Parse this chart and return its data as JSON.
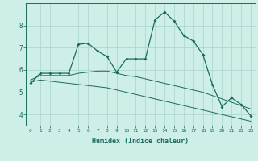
{
  "xlabel": "Humidex (Indice chaleur)",
  "bg_color": "#ceeee8",
  "grid_color": "#b0d8d0",
  "line_color": "#1a6b5e",
  "xlim": [
    -0.5,
    23.5
  ],
  "ylim": [
    3.5,
    9.0
  ],
  "yticks": [
    4,
    5,
    6,
    7,
    8
  ],
  "xticks": [
    0,
    1,
    2,
    3,
    4,
    5,
    6,
    7,
    8,
    9,
    10,
    11,
    12,
    13,
    14,
    15,
    16,
    17,
    18,
    19,
    20,
    21,
    22,
    23
  ],
  "curve1_x": [
    0,
    1,
    2,
    3,
    4,
    5,
    6,
    7,
    8,
    9,
    10,
    11,
    12,
    13,
    14,
    15,
    16,
    17,
    18,
    19,
    20,
    21,
    22,
    23
  ],
  "curve1_y": [
    5.4,
    5.85,
    5.85,
    5.85,
    5.85,
    7.15,
    7.2,
    6.85,
    6.6,
    5.9,
    6.5,
    6.5,
    6.5,
    8.25,
    8.6,
    8.2,
    7.55,
    7.3,
    6.7,
    5.35,
    4.35,
    4.75,
    4.45,
    3.95
  ],
  "curve2_x": [
    0,
    1,
    2,
    3,
    4,
    5,
    6,
    7,
    8,
    9,
    10,
    11,
    12,
    13,
    14,
    15,
    16,
    17,
    18,
    19,
    20,
    21,
    22,
    23
  ],
  "curve2_y": [
    5.55,
    5.75,
    5.75,
    5.75,
    5.75,
    5.85,
    5.9,
    5.95,
    5.95,
    5.85,
    5.75,
    5.7,
    5.6,
    5.5,
    5.4,
    5.3,
    5.2,
    5.1,
    5.0,
    4.85,
    4.7,
    4.55,
    4.4,
    4.25
  ],
  "curve3_x": [
    0,
    1,
    2,
    3,
    4,
    5,
    6,
    7,
    8,
    9,
    10,
    11,
    12,
    13,
    14,
    15,
    16,
    17,
    18,
    19,
    20,
    21,
    22,
    23
  ],
  "curve3_y": [
    5.45,
    5.55,
    5.5,
    5.45,
    5.4,
    5.35,
    5.3,
    5.25,
    5.2,
    5.1,
    5.0,
    4.9,
    4.8,
    4.7,
    4.6,
    4.5,
    4.4,
    4.3,
    4.2,
    4.1,
    4.0,
    3.9,
    3.8,
    3.7
  ]
}
